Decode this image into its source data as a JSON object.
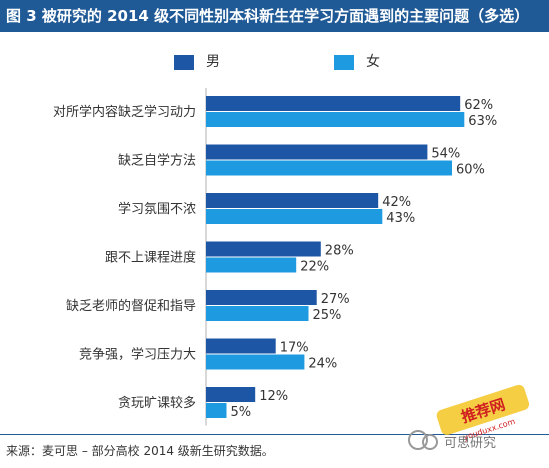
{
  "header": {
    "title": "图 3 被研究的 2014 级不同性别本科新生在学习方面遇到的主要问题（多选）"
  },
  "legend": {
    "items": [
      {
        "label": "男",
        "color": "#1e56a6"
      },
      {
        "label": "女",
        "color": "#1e9ae0"
      }
    ]
  },
  "footer": {
    "source": "来源：麦可思 – 部分高校 2014 级新生研究数据。"
  },
  "watermark": {
    "site": "推荐网",
    "site_sub": "youduxx.com",
    "text": "可思研究"
  },
  "chart_data": {
    "type": "bar",
    "orientation": "horizontal",
    "title": "图 3 被研究的 2014 级不同性别本科新生在学习方面遇到的主要问题（多选）",
    "categories": [
      "对所学内容缺乏学习动力",
      "缺乏自学方法",
      "学习氛围不浓",
      "跟不上课程进度",
      "缺乏老师的督促和指导",
      "竞争强，学习压力大",
      "贪玩旷课较多"
    ],
    "series": [
      {
        "name": "男",
        "color": "#1e56a6",
        "values": [
          62,
          54,
          42,
          28,
          27,
          17,
          12
        ]
      },
      {
        "name": "女",
        "color": "#1e9ae0",
        "values": [
          63,
          60,
          43,
          22,
          25,
          24,
          5
        ]
      }
    ],
    "value_suffix": "%",
    "xlim": [
      0,
      70
    ],
    "grid": false,
    "legend_position": "top"
  }
}
